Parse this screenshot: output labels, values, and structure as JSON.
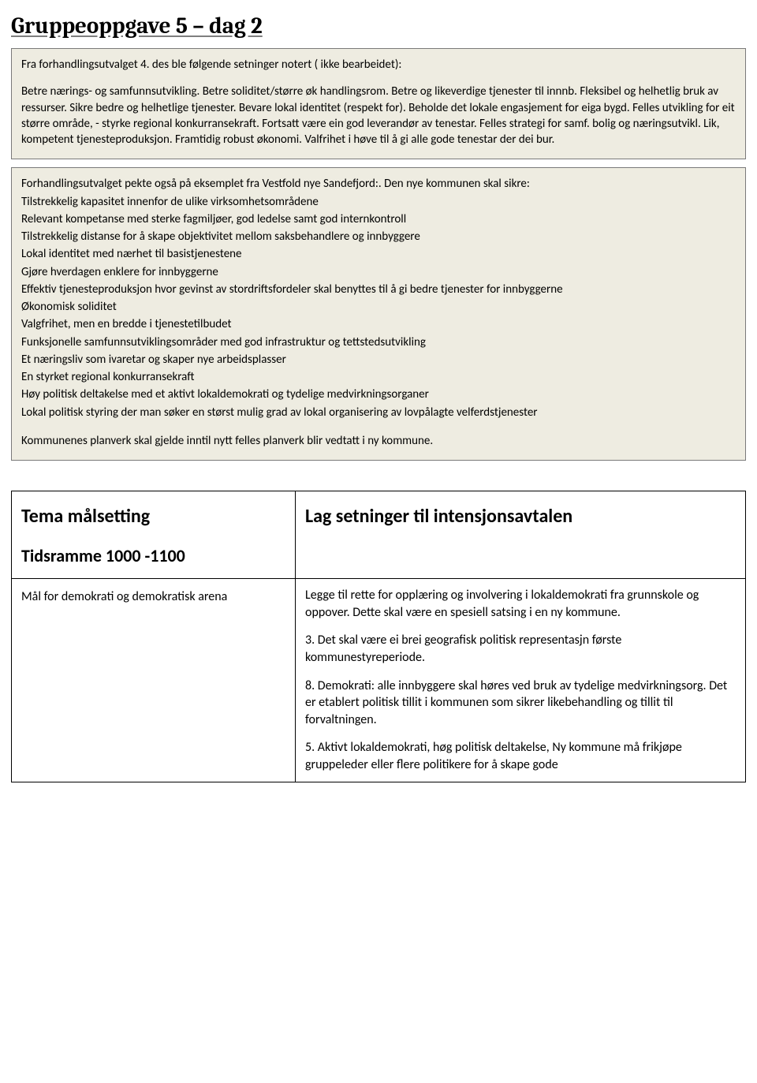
{
  "title": "Gruppeoppgave 5 – dag 2",
  "box1": {
    "lead": "Fra forhandlingsutvalget 4. des ble følgende setninger notert ( ikke bearbeidet):",
    "lines": [
      "Betre nærings- og samfunnsutvikling.",
      "Betre soliditet/større øk handlingsrom.",
      "Betre og likeverdige tjenester til innnb.",
      "Fleksibel og helhetlig bruk av ressurser.",
      "Sikre bedre og helhetlige tjenester.",
      "Bevare lokal identitet (respekt for).",
      "Beholde det lokale engasjement for eiga bygd.",
      "Felles utvikling for eit større område, - styrke regional konkurransekraft.",
      "Fortsatt være ein god leverandør av tenestar.",
      "Felles strategi for samf. bolig og næringsutvikl.",
      "Lik, kompetent tjenesteproduksjon.",
      "Framtidig robust økonomi.",
      "Valfrihet i høve til å gi alle gode tenestar der dei bur."
    ]
  },
  "box2": {
    "lead": "Forhandlingsutvalget pekte også på eksemplet fra Vestfold nye Sandefjord:. Den nye kommunen skal sikre:",
    "lines": [
      "Tilstrekkelig kapasitet innenfor de ulike virksomhetsområdene",
      "Relevant kompetanse med sterke fagmiljøer, god ledelse samt god internkontroll",
      "Tilstrekkelig distanse for å skape objektivitet mellom saksbehandlere og innbyggere",
      "Lokal identitet med nærhet til basistjenestene",
      "Gjøre hverdagen enklere for innbyggerne",
      "Effektiv tjenesteproduksjon hvor gevinst av stordriftsfordeler skal benyttes til å gi bedre tjenester for innbyggerne",
      "Økonomisk soliditet",
      "Valgfrihet, men en bredde i tjenestetilbudet",
      "Funksjonelle samfunnsutviklingsområder med god infrastruktur og tettstedsutvikling",
      "Et næringsliv som ivaretar og skaper nye arbeidsplasser",
      "En styrket regional konkurransekraft",
      "Høy politisk deltakelse med et aktivt lokaldemokrati og tydelige medvirkningsorganer",
      "Lokal politisk styring der man søker en størst mulig grad av lokal organisering av lovpålagte velferdstjenester"
    ],
    "footer": "Kommunenes planverk skal gjelde inntil nytt felles planverk blir vedtatt i ny kommune."
  },
  "table": {
    "left_header": "Tema målsetting",
    "right_header": "Lag setninger til intensjonsavtalen",
    "left_sub": "Tidsramme 1000 -1100",
    "goal": "Mål for demokrati og demokratisk arena",
    "right_paras": [
      "Legge til rette for opplæring og involvering i lokaldemokrati fra grunnskole og oppover. Dette skal være en spesiell satsing i en ny kommune.",
      "3. Det skal være ei brei geografisk politisk representasjn første kommunestyreperiode.",
      "8. Demokrati: alle innbyggere skal høres ved bruk av tydelige medvirkningsorg. Det er etablert politisk tillit i kommunen som sikrer likebehandling og tillit til forvaltningen.",
      "5. Aktivt lokaldemokrati, høg politisk deltakelse, Ny kommune må frikjøpe gruppeleder eller flere politikere for å skape gode"
    ]
  }
}
